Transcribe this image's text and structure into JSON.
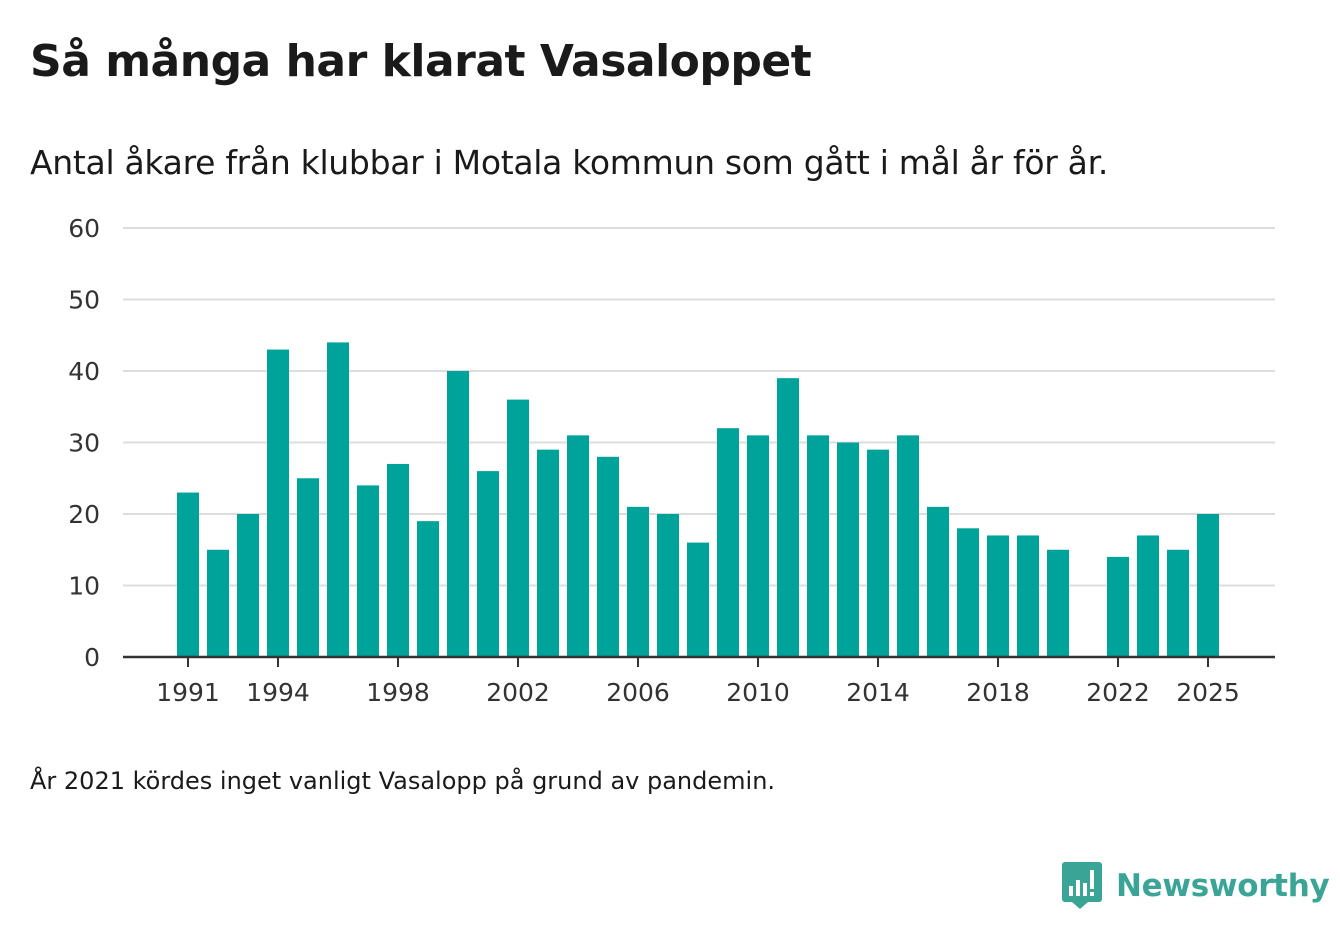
{
  "chart_data": {
    "type": "bar",
    "title": "Så många har klarat Vasaloppet",
    "subtitle": "Antal åkare från klubbar i Motala kommun som gått i mål år för år.",
    "xlabel": "",
    "ylabel": "",
    "ylim": [
      0,
      60
    ],
    "yticks": [
      0,
      10,
      20,
      30,
      40,
      50,
      60
    ],
    "grid": true,
    "categories": [
      1991,
      1992,
      1993,
      1994,
      1995,
      1996,
      1997,
      1998,
      1999,
      2000,
      2001,
      2002,
      2003,
      2004,
      2005,
      2006,
      2007,
      2008,
      2009,
      2010,
      2011,
      2012,
      2013,
      2014,
      2015,
      2016,
      2017,
      2018,
      2019,
      2020,
      2021,
      2022,
      2023,
      2024,
      2025
    ],
    "values": [
      23,
      15,
      20,
      43,
      25,
      44,
      24,
      27,
      19,
      40,
      26,
      36,
      29,
      31,
      28,
      21,
      20,
      16,
      32,
      31,
      39,
      31,
      30,
      29,
      31,
      21,
      18,
      17,
      17,
      15,
      null,
      14,
      17,
      15,
      20
    ],
    "xtick_labels": [
      "1991",
      "1994",
      "1998",
      "2002",
      "2006",
      "2010",
      "2014",
      "2018",
      "2022",
      "2025"
    ],
    "bar_color": "#00a39a",
    "note": "År 2021 kördes inget vanligt Vasalopp på grund av pandemin."
  },
  "brand": {
    "name": "Newsworthy",
    "color": "#3aa597"
  }
}
